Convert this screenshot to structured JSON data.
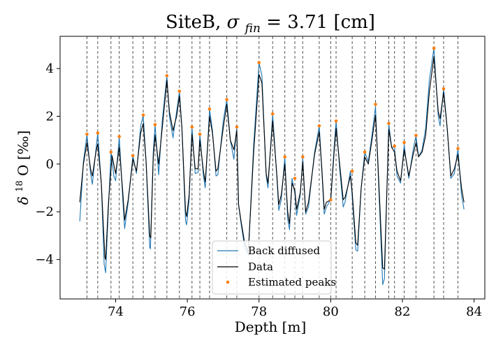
{
  "chart_data": {
    "type": "line",
    "title": "SiteB, σ_fin = 3.71 [cm]",
    "title_parts": {
      "site": "SiteB,",
      "sigma": "σ",
      "sub": "fin",
      "rest": " = 3.71 [cm]"
    },
    "xlabel": "Depth [m]",
    "ylabel_parts": {
      "delta": "δ",
      "sup": "18",
      "o": "O [‰]"
    },
    "xlim": [
      72.45,
      84.3
    ],
    "ylim": [
      -5.65,
      5.35
    ],
    "xticks": [
      74,
      76,
      78,
      80,
      82,
      84
    ],
    "yticks": [
      -4,
      -2,
      0,
      2,
      4
    ],
    "grid": false,
    "legend_position": "lower-center",
    "colors": {
      "back_diffused": "#1f77b4",
      "data": "#000000",
      "peaks": "#ff7f0e",
      "vlines": "#555555"
    },
    "legend": [
      {
        "label": "Back diffused",
        "kind": "line",
        "color": "#1f77b4"
      },
      {
        "label": "Data",
        "kind": "line",
        "color": "#000000"
      },
      {
        "label": "Estimated peaks",
        "kind": "dot",
        "color": "#ff7f0e"
      }
    ],
    "series": [
      {
        "name": "Back diffused",
        "points": [
          [
            73.0,
            -2.4
          ],
          [
            73.1,
            0.1
          ],
          [
            73.2,
            1.25
          ],
          [
            73.3,
            -0.4
          ],
          [
            73.35,
            -0.85
          ],
          [
            73.45,
            0.6
          ],
          [
            73.5,
            1.3
          ],
          [
            73.6,
            -0.8
          ],
          [
            73.68,
            -4.2
          ],
          [
            73.72,
            -4.55
          ],
          [
            73.8,
            -1.8
          ],
          [
            73.87,
            0.5
          ],
          [
            73.95,
            -0.5
          ],
          [
            74.0,
            -0.7
          ],
          [
            74.1,
            1.15
          ],
          [
            74.2,
            -1.5
          ],
          [
            74.25,
            -2.7
          ],
          [
            74.35,
            -1.6
          ],
          [
            74.48,
            0.35
          ],
          [
            74.58,
            -0.4
          ],
          [
            74.7,
            1.6
          ],
          [
            74.77,
            2.05
          ],
          [
            74.85,
            0.1
          ],
          [
            74.95,
            -3.5
          ],
          [
            74.97,
            -3.55
          ],
          [
            75.05,
            0.5
          ],
          [
            75.1,
            1.65
          ],
          [
            75.2,
            -0.45
          ],
          [
            75.3,
            1.8
          ],
          [
            75.43,
            3.7
          ],
          [
            75.5,
            2.0
          ],
          [
            75.6,
            1.1
          ],
          [
            75.7,
            2.2
          ],
          [
            75.78,
            3.05
          ],
          [
            75.85,
            1.5
          ],
          [
            75.95,
            -2.4
          ],
          [
            75.98,
            -2.55
          ],
          [
            76.05,
            -1.5
          ],
          [
            76.13,
            1.55
          ],
          [
            76.22,
            -0.4
          ],
          [
            76.3,
            -0.35
          ],
          [
            76.35,
            1.25
          ],
          [
            76.45,
            -0.5
          ],
          [
            76.5,
            -1.0
          ],
          [
            76.62,
            2.3
          ],
          [
            76.7,
            1.4
          ],
          [
            76.8,
            -0.5
          ],
          [
            76.85,
            -0.45
          ],
          [
            77.0,
            1.8
          ],
          [
            77.1,
            2.7
          ],
          [
            77.2,
            1.0
          ],
          [
            77.3,
            0.2
          ],
          [
            77.38,
            1.55
          ],
          [
            77.43,
            -1.7
          ],
          [
            77.5,
            -2.5
          ],
          [
            77.6,
            -3.5
          ],
          [
            77.7,
            -3.8
          ],
          [
            77.85,
            0.8
          ],
          [
            78.0,
            4.25
          ],
          [
            78.08,
            3.7
          ],
          [
            78.2,
            -0.5
          ],
          [
            78.25,
            -1.0
          ],
          [
            78.38,
            2.1
          ],
          [
            78.5,
            -0.6
          ],
          [
            78.55,
            -1.95
          ],
          [
            78.62,
            -1.5
          ],
          [
            78.72,
            0.3
          ],
          [
            78.8,
            -2.3
          ],
          [
            78.85,
            -2.75
          ],
          [
            78.92,
            -0.6
          ],
          [
            79.0,
            -1.25
          ],
          [
            79.05,
            -2.15
          ],
          [
            79.15,
            -1.3
          ],
          [
            79.22,
            0.25
          ],
          [
            79.3,
            -2.1
          ],
          [
            79.38,
            -1.8
          ],
          [
            79.55,
            0.5
          ],
          [
            79.68,
            1.6
          ],
          [
            79.75,
            -0.2
          ],
          [
            79.82,
            -2.1
          ],
          [
            79.88,
            -1.8
          ],
          [
            80.0,
            -1.5
          ],
          [
            80.1,
            0.8
          ],
          [
            80.15,
            1.8
          ],
          [
            80.25,
            -0.2
          ],
          [
            80.35,
            -1.8
          ],
          [
            80.4,
            -1.6
          ],
          [
            80.55,
            -0.3
          ],
          [
            80.6,
            -1.4
          ],
          [
            80.7,
            -3.6
          ],
          [
            80.75,
            -3.65
          ],
          [
            80.85,
            -1.0
          ],
          [
            80.95,
            0.5
          ],
          [
            81.05,
            0.1
          ],
          [
            81.15,
            1.2
          ],
          [
            81.25,
            2.4
          ],
          [
            81.3,
            0.5
          ],
          [
            81.45,
            -5.05
          ],
          [
            81.5,
            -4.8
          ],
          [
            81.62,
            1.7
          ],
          [
            81.7,
            0.7
          ],
          [
            81.78,
            0.7
          ],
          [
            81.85,
            -0.5
          ],
          [
            81.95,
            -0.8
          ],
          [
            82.05,
            0.8
          ],
          [
            82.1,
            0.2
          ],
          [
            82.18,
            -0.6
          ],
          [
            82.3,
            0.6
          ],
          [
            82.38,
            1.2
          ],
          [
            82.45,
            0.3
          ],
          [
            82.55,
            0.6
          ],
          [
            82.65,
            1.5
          ],
          [
            82.75,
            3.5
          ],
          [
            82.88,
            4.85
          ],
          [
            83.0,
            2.0
          ],
          [
            83.05,
            1.6
          ],
          [
            83.15,
            3.15
          ],
          [
            83.25,
            1.5
          ],
          [
            83.35,
            -0.6
          ],
          [
            83.45,
            -0.4
          ],
          [
            83.55,
            0.65
          ],
          [
            83.65,
            -1.3
          ],
          [
            83.72,
            -1.9
          ]
        ]
      },
      {
        "name": "Data",
        "points": [
          [
            73.0,
            -1.6
          ],
          [
            73.1,
            0.0
          ],
          [
            73.2,
            0.9
          ],
          [
            73.3,
            -0.2
          ],
          [
            73.35,
            -0.5
          ],
          [
            73.45,
            0.5
          ],
          [
            73.5,
            0.85
          ],
          [
            73.6,
            -0.8
          ],
          [
            73.7,
            -3.9
          ],
          [
            73.72,
            -4.0
          ],
          [
            73.8,
            -1.6
          ],
          [
            73.9,
            0.35
          ],
          [
            74.0,
            -0.4
          ],
          [
            74.1,
            0.7
          ],
          [
            74.2,
            -1.2
          ],
          [
            74.25,
            -2.35
          ],
          [
            74.35,
            -1.5
          ],
          [
            74.48,
            0.2
          ],
          [
            74.58,
            -0.3
          ],
          [
            74.7,
            1.3
          ],
          [
            74.77,
            1.7
          ],
          [
            74.85,
            0.1
          ],
          [
            74.95,
            -3.0
          ],
          [
            74.98,
            -3.1
          ],
          [
            75.05,
            0.3
          ],
          [
            75.1,
            1.2
          ],
          [
            75.2,
            0.0
          ],
          [
            75.3,
            1.5
          ],
          [
            75.43,
            3.5
          ],
          [
            75.5,
            2.2
          ],
          [
            75.6,
            1.4
          ],
          [
            75.7,
            2.0
          ],
          [
            75.78,
            2.85
          ],
          [
            75.85,
            1.5
          ],
          [
            75.95,
            -2.0
          ],
          [
            75.98,
            -2.2
          ],
          [
            76.05,
            -1.3
          ],
          [
            76.13,
            1.25
          ],
          [
            76.22,
            -0.2
          ],
          [
            76.3,
            -0.2
          ],
          [
            76.35,
            1.0
          ],
          [
            76.45,
            -0.3
          ],
          [
            76.5,
            -0.75
          ],
          [
            76.62,
            2.0
          ],
          [
            76.7,
            1.3
          ],
          [
            76.8,
            -0.3
          ],
          [
            76.85,
            -0.2
          ],
          [
            77.0,
            1.5
          ],
          [
            77.1,
            2.5
          ],
          [
            77.2,
            1.0
          ],
          [
            77.3,
            0.6
          ],
          [
            77.38,
            1.4
          ],
          [
            77.43,
            -1.7
          ],
          [
            77.5,
            -2.4
          ],
          [
            77.6,
            -3.3
          ],
          [
            77.7,
            -3.7
          ],
          [
            77.85,
            0.5
          ],
          [
            78.0,
            3.75
          ],
          [
            78.08,
            3.4
          ],
          [
            78.2,
            -0.4
          ],
          [
            78.25,
            -0.8
          ],
          [
            78.38,
            1.8
          ],
          [
            78.5,
            -0.5
          ],
          [
            78.55,
            -1.7
          ],
          [
            78.62,
            -1.3
          ],
          [
            78.72,
            0.0
          ],
          [
            78.8,
            -2.0
          ],
          [
            78.85,
            -2.5
          ],
          [
            78.92,
            -0.8
          ],
          [
            79.0,
            -1.1
          ],
          [
            79.05,
            -1.9
          ],
          [
            79.15,
            -1.2
          ],
          [
            79.22,
            0.1
          ],
          [
            79.3,
            -2.0
          ],
          [
            79.38,
            -1.6
          ],
          [
            79.55,
            0.4
          ],
          [
            79.68,
            1.35
          ],
          [
            79.75,
            -0.1
          ],
          [
            79.82,
            -1.9
          ],
          [
            79.88,
            -1.6
          ],
          [
            80.0,
            -1.5
          ],
          [
            80.1,
            0.6
          ],
          [
            80.15,
            1.5
          ],
          [
            80.25,
            0.0
          ],
          [
            80.35,
            -1.5
          ],
          [
            80.4,
            -1.4
          ],
          [
            80.55,
            -0.5
          ],
          [
            80.6,
            -1.2
          ],
          [
            80.7,
            -3.3
          ],
          [
            80.75,
            -3.4
          ],
          [
            80.85,
            -1.0
          ],
          [
            80.95,
            0.3
          ],
          [
            81.05,
            0.0
          ],
          [
            81.15,
            1.0
          ],
          [
            81.25,
            2.05
          ],
          [
            81.3,
            0.6
          ],
          [
            81.45,
            -4.35
          ],
          [
            81.5,
            -4.4
          ],
          [
            81.62,
            1.45
          ],
          [
            81.7,
            0.7
          ],
          [
            81.78,
            0.5
          ],
          [
            81.85,
            -0.3
          ],
          [
            81.95,
            -0.7
          ],
          [
            82.05,
            0.6
          ],
          [
            82.1,
            0.2
          ],
          [
            82.18,
            -0.5
          ],
          [
            82.3,
            0.4
          ],
          [
            82.38,
            0.9
          ],
          [
            82.45,
            0.3
          ],
          [
            82.55,
            0.5
          ],
          [
            82.65,
            1.2
          ],
          [
            82.75,
            3.0
          ],
          [
            82.88,
            4.5
          ],
          [
            83.0,
            2.2
          ],
          [
            83.05,
            1.9
          ],
          [
            83.15,
            3.0
          ],
          [
            83.25,
            1.5
          ],
          [
            83.35,
            -0.5
          ],
          [
            83.45,
            -0.2
          ],
          [
            83.55,
            0.4
          ],
          [
            83.65,
            -1.0
          ],
          [
            83.72,
            -1.6
          ]
        ]
      },
      {
        "name": "Estimated peaks",
        "points": [
          [
            73.2,
            1.25
          ],
          [
            73.5,
            1.3
          ],
          [
            73.87,
            0.5
          ],
          [
            74.1,
            1.15
          ],
          [
            74.48,
            0.35
          ],
          [
            74.77,
            2.05
          ],
          [
            75.1,
            1.65
          ],
          [
            75.43,
            3.7
          ],
          [
            75.78,
            3.05
          ],
          [
            76.13,
            1.55
          ],
          [
            76.35,
            1.25
          ],
          [
            76.62,
            2.3
          ],
          [
            77.1,
            2.7
          ],
          [
            77.38,
            1.55
          ],
          [
            78.0,
            4.25
          ],
          [
            78.38,
            2.1
          ],
          [
            78.72,
            0.3
          ],
          [
            79.0,
            -0.6
          ],
          [
            79.22,
            0.3
          ],
          [
            79.68,
            1.6
          ],
          [
            80.0,
            -1.5
          ],
          [
            80.15,
            1.8
          ],
          [
            80.6,
            -0.3
          ],
          [
            80.95,
            0.5
          ],
          [
            81.25,
            2.5
          ],
          [
            81.62,
            1.7
          ],
          [
            81.78,
            0.75
          ],
          [
            82.05,
            0.9
          ],
          [
            82.38,
            1.2
          ],
          [
            82.88,
            4.85
          ],
          [
            83.15,
            3.15
          ],
          [
            83.55,
            0.65
          ]
        ]
      }
    ],
    "vlines": [
      73.2,
      73.5,
      73.87,
      74.1,
      74.48,
      74.77,
      75.1,
      75.43,
      75.78,
      76.13,
      76.35,
      76.62,
      77.1,
      77.38,
      78.0,
      78.38,
      78.72,
      79.0,
      79.22,
      79.68,
      80.0,
      80.15,
      80.6,
      80.95,
      81.25,
      81.62,
      81.78,
      82.05,
      82.38,
      82.88,
      83.15,
      83.55
    ]
  }
}
